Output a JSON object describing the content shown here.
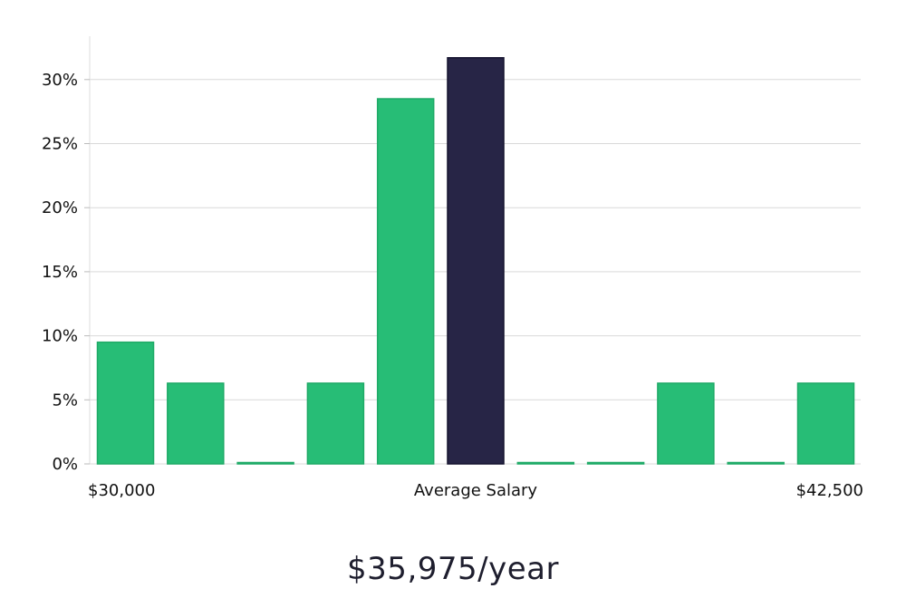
{
  "chart_data": {
    "type": "bar",
    "title": "",
    "xlabel": "Average Salary",
    "x_range_labels": {
      "min": "$30,000",
      "max": "$42,500"
    },
    "ylabel": "",
    "y_unit": "%",
    "ylim": [
      0,
      33
    ],
    "yticks": [
      0,
      5,
      10,
      15,
      20,
      25,
      30
    ],
    "ytick_labels": [
      "0%",
      "5%",
      "10%",
      "15%",
      "20%",
      "25%",
      "30%"
    ],
    "grid": true,
    "values": [
      9.5,
      6.3,
      0,
      6.3,
      28.5,
      31.7,
      0,
      0,
      6.3,
      0,
      6.3
    ],
    "highlight_index": 5,
    "colors": {
      "bar": "#27bd76",
      "bar_edge": "#1faa67",
      "highlight": "#272546",
      "grid": "#d9d9d9",
      "axis": "#dddddd"
    }
  },
  "headline": {
    "salary": "$35,975/year"
  }
}
